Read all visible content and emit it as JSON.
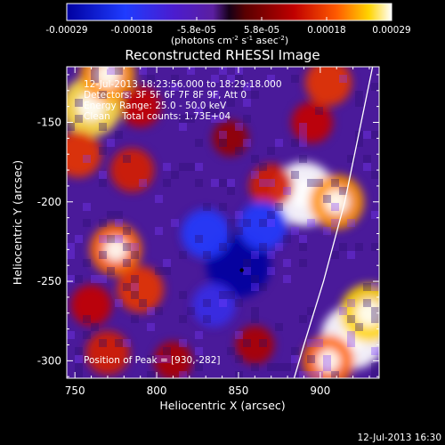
{
  "chart_data": {
    "type": "heatmap",
    "title": "Reconstructed RHESSI Image",
    "xlabel": "Heliocentric X (arcsec)",
    "ylabel": "Heliocentric Y (arcsec)",
    "xlim": [
      745,
      936
    ],
    "ylim": [
      -311,
      -115
    ],
    "x_ticks": [
      750,
      800,
      850,
      900
    ],
    "y_ticks": [
      -150,
      -200,
      -250,
      -300
    ],
    "colorbar": {
      "range": [
        -0.00029,
        0.00029
      ],
      "ticks": [
        "-0.00029",
        "-0.00018",
        "-5.8e-05",
        "5.8e-05",
        "0.00018",
        "0.00029"
      ],
      "unit_prefix": "(photons cm",
      "unit_exp1": "-2",
      "unit_mid": " s",
      "unit_exp2": "-1",
      "unit_mid2": " asec",
      "unit_exp3": "-2",
      "unit_suffix": ")"
    },
    "annotations": [
      "12-Jul-2013 18:23:56.000 to 18:29:18.000",
      "Detectors: 3F 5F 6F 7F 8F 9F, Att 0",
      "Energy Range: 25.0 - 50.0 keV",
      "Clean    Total counts: 1.73E+04"
    ],
    "peak_label": "Position of Peak = [930,-282]",
    "peak": [
      930,
      -282
    ],
    "limb_arc": [
      [
        932,
        -115
      ],
      [
        915,
        -200
      ],
      [
        902,
        -250
      ],
      [
        890,
        -290
      ],
      [
        884,
        -311
      ]
    ],
    "hot_spots": [
      {
        "x": 760,
        "y": -140,
        "value": 0.00026
      },
      {
        "x": 770,
        "y": -120,
        "value": 0.00022
      },
      {
        "x": 752,
        "y": -170,
        "value": 0.00016
      },
      {
        "x": 790,
        "y": -140,
        "value": 0.00012
      },
      {
        "x": 785,
        "y": -180,
        "value": 0.00014
      },
      {
        "x": 775,
        "y": -230,
        "value": 0.0002
      },
      {
        "x": 790,
        "y": -255,
        "value": 0.00016
      },
      {
        "x": 760,
        "y": -265,
        "value": 0.00012
      },
      {
        "x": 770,
        "y": -295,
        "value": 0.00014
      },
      {
        "x": 810,
        "y": -300,
        "value": 0.0001
      },
      {
        "x": 890,
        "y": -195,
        "value": 0.00029
      },
      {
        "x": 910,
        "y": -200,
        "value": 0.00022
      },
      {
        "x": 870,
        "y": -190,
        "value": 0.00014
      },
      {
        "x": 895,
        "y": -150,
        "value": 0.00012
      },
      {
        "x": 905,
        "y": -125,
        "value": 0.00016
      },
      {
        "x": 920,
        "y": -285,
        "value": 0.00029
      },
      {
        "x": 930,
        "y": -270,
        "value": 0.00025
      },
      {
        "x": 905,
        "y": -300,
        "value": 0.0002
      },
      {
        "x": 860,
        "y": -290,
        "value": 0.0001
      },
      {
        "x": 845,
        "y": -160,
        "value": 8e-05
      },
      {
        "x": 850,
        "y": -240,
        "value": -0.00029
      },
      {
        "x": 830,
        "y": -220,
        "value": -0.00018
      },
      {
        "x": 865,
        "y": -215,
        "value": -0.00018
      },
      {
        "x": 835,
        "y": -265,
        "value": -0.00014
      }
    ]
  },
  "footer": {
    "timestamp": "12-Jul-2013 16:30"
  }
}
